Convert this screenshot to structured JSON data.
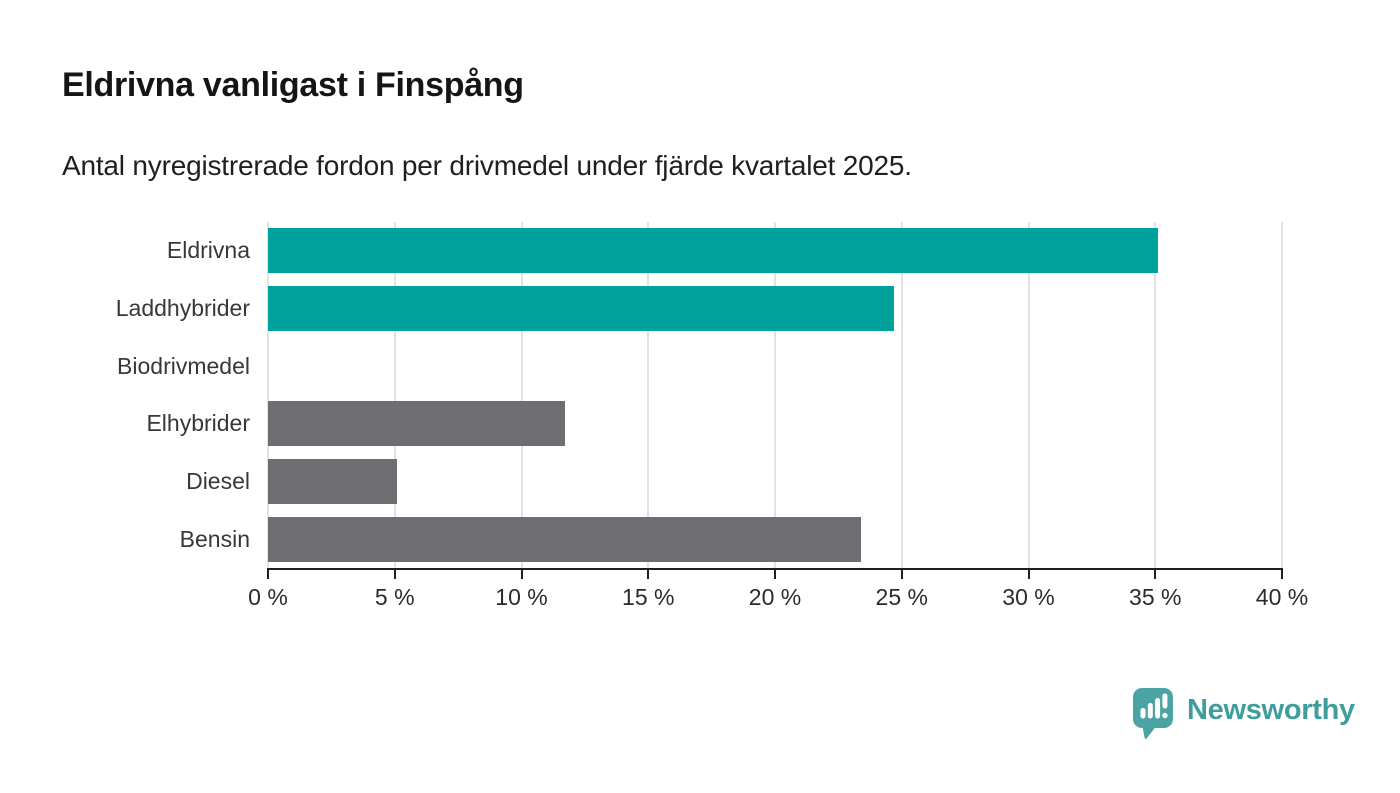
{
  "header": {
    "title": "Eldrivna vanligast i Finspång",
    "subtitle": "Antal nyregistrerade fordon per drivmedel under fjärde kvartalet 2025."
  },
  "chart_data": {
    "type": "bar",
    "orientation": "horizontal",
    "title": "Eldrivna vanligast i Finspång",
    "subtitle": "Antal nyregistrerade fordon per drivmedel under fjärde kvartalet 2025.",
    "categories": [
      "Eldrivna",
      "Laddhybrider",
      "Biodrivmedel",
      "Elhybrider",
      "Diesel",
      "Bensin"
    ],
    "values": [
      35.1,
      24.7,
      0,
      11.7,
      5.1,
      23.4
    ],
    "unit": "%",
    "xlim": [
      0,
      40
    ],
    "x_ticks": [
      0,
      5,
      10,
      15,
      20,
      25,
      30,
      35,
      40
    ],
    "x_tick_labels": [
      "0 %",
      "5 %",
      "10 %",
      "15 %",
      "20 %",
      "25 %",
      "30 %",
      "35 %",
      "40 %"
    ],
    "grid": "vertical-gridlines-on",
    "legend": "none",
    "bar_colors": [
      "#00a09b",
      "#00a09b",
      "#00a09b",
      "#6e6e72",
      "#6e6e72",
      "#6e6e72"
    ],
    "highlight_color": "#00a09b",
    "default_color": "#6e6e72",
    "gridline_color": "#e2e2e2",
    "axis_color": "#1f1f1f"
  },
  "footer": {
    "brand": "Newsworthy",
    "brand_color": "#3e9e9e",
    "logo_icon": "newsworthy-speech-bubble-bar-chart-icon"
  }
}
